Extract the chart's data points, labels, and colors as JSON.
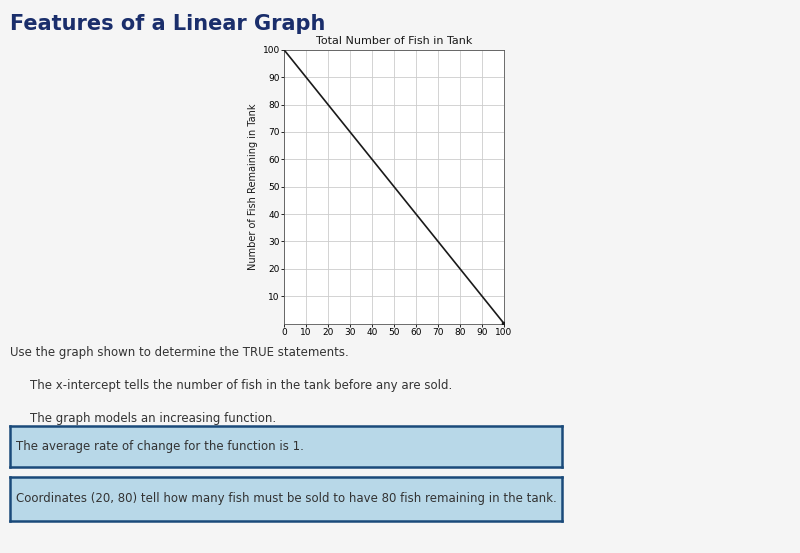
{
  "page_title": "Features of a Linear Graph",
  "chart_title": "Total Number of Fish in Tank",
  "ylabel": "Number of Fish Remaining in Tank",
  "line_x": [
    0,
    100
  ],
  "line_y": [
    100,
    0
  ],
  "xlim": [
    0,
    100
  ],
  "ylim": [
    0,
    100
  ],
  "xticks": [
    0,
    10,
    20,
    30,
    40,
    50,
    60,
    70,
    80,
    90,
    100
  ],
  "yticks": [
    10,
    20,
    30,
    40,
    50,
    60,
    70,
    80,
    90,
    100
  ],
  "line_color": "#1a1a1a",
  "grid_color": "#cccccc",
  "background_color": "#ffffff",
  "page_bg_color": "#f5f5f5",
  "title_color": "#1a2e6b",
  "instruction_text": "Use the graph shown to determine the TRUE statements.",
  "statements": [
    {
      "text": "The x-intercept tells the number of fish in the tank before any are sold.",
      "highlighted": false
    },
    {
      "text": "The graph models an increasing function.",
      "highlighted": false
    },
    {
      "text": "The average rate of change for the function is 1.",
      "highlighted": true
    },
    {
      "text": "Coordinates (20, 80) tell how many fish must be sold to have 80 fish remaining in the tank.",
      "highlighted": true
    }
  ],
  "highlight_color": "#b8d8e8",
  "highlight_border_color": "#1a4a7a",
  "statement_text_color": "#333333",
  "instruction_color": "#333333",
  "page_title_fontsize": 15,
  "chart_title_fontsize": 8,
  "tick_fontsize": 6.5,
  "ylabel_fontsize": 7,
  "instruction_fontsize": 8.5,
  "statement_fontsize": 8.5
}
